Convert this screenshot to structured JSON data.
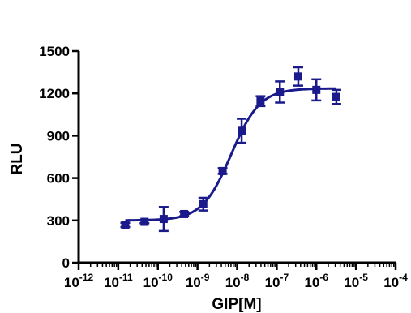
{
  "chart_data": {
    "type": "scatter",
    "xlabel": "GIP[M]",
    "ylabel": "RLU",
    "xscale": "log",
    "xlim": [
      1e-12,
      0.0001
    ],
    "ylim": [
      0,
      1500
    ],
    "yticks": [
      "0",
      "300",
      "600",
      "900",
      "1200",
      "1500"
    ],
    "xticks": [
      {
        "base": "10",
        "exp": "-12"
      },
      {
        "base": "10",
        "exp": "-11"
      },
      {
        "base": "10",
        "exp": "-10"
      },
      {
        "base": "10",
        "exp": "-9"
      },
      {
        "base": "10",
        "exp": "-8"
      },
      {
        "base": "10",
        "exp": "-7"
      },
      {
        "base": "10",
        "exp": "-6"
      },
      {
        "base": "10",
        "exp": "-5"
      },
      {
        "base": "10",
        "exp": "-4"
      }
    ],
    "grid": false,
    "series": [
      {
        "color": "#1a1a8c",
        "points": [
          {
            "x": 1.5e-11,
            "y": 268,
            "err": 15
          },
          {
            "x": 4.6e-11,
            "y": 290,
            "err": 10
          },
          {
            "x": 1.4e-10,
            "y": 310,
            "err": 85
          },
          {
            "x": 4.6e-10,
            "y": 345,
            "err": 15
          },
          {
            "x": 1.4e-09,
            "y": 415,
            "err": 45
          },
          {
            "x": 4.3e-09,
            "y": 650,
            "err": 20
          },
          {
            "x": 1.3e-08,
            "y": 935,
            "err": 85
          },
          {
            "x": 3.9e-08,
            "y": 1145,
            "err": 35
          },
          {
            "x": 1.2e-07,
            "y": 1210,
            "err": 75
          },
          {
            "x": 3.5e-07,
            "y": 1320,
            "err": 65
          },
          {
            "x": 1e-06,
            "y": 1225,
            "err": 75
          },
          {
            "x": 3.2e-06,
            "y": 1175,
            "err": 50
          }
        ],
        "fit": {
          "bottom": 300,
          "top": 1235,
          "log_ec50": -8.15,
          "hill": 1.2,
          "x_range": [
            1.5e-11,
            3.2e-06
          ]
        }
      }
    ]
  }
}
